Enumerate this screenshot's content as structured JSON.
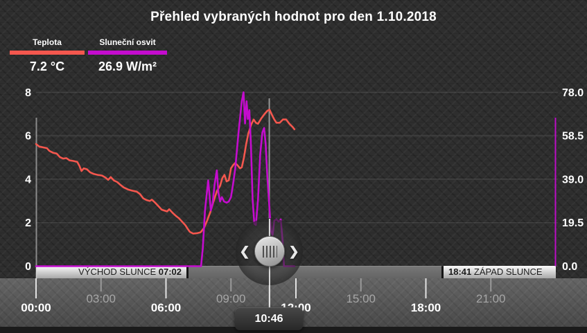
{
  "title": "Přehled vybraných hodnot pro den 1.10.2018",
  "legend": [
    {
      "label": "Teplota",
      "value": "7.2 °C",
      "color": "#f4574e"
    },
    {
      "label": "Sluneční osvit",
      "value": "26.9 W/m²",
      "color": "#c40cce"
    }
  ],
  "sun_band": {
    "sunrise_label": "VÝCHOD SLUNCE",
    "sunrise_time": "07:02",
    "sunset_time": "18:41",
    "sunset_label": "ZÁPAD SLUNCE"
  },
  "cursor": {
    "time": "10:46",
    "hour": 10.77
  },
  "slider": {
    "left_arrow": "❮",
    "right_arrow": "❯"
  },
  "colors": {
    "background": "#2e2e2e",
    "temperature_line": "#f4574e",
    "solar_line": "#c40cce",
    "grid": "rgba(255,255,255,0.14)",
    "major_tick_label": "#ffffff",
    "minor_tick_label": "#a6a6a6"
  },
  "chart_data": {
    "type": "line",
    "title": "Přehled vybraných hodnot pro den 1.10.2018",
    "x": {
      "unit": "time",
      "range_hours": [
        0,
        24
      ],
      "ticks": [
        {
          "hour": 0,
          "label": "00:00",
          "major": true
        },
        {
          "hour": 3,
          "label": "03:00",
          "major": false
        },
        {
          "hour": 6,
          "label": "06:00",
          "major": true
        },
        {
          "hour": 9,
          "label": "09:00",
          "major": false
        },
        {
          "hour": 12,
          "label": "12:00",
          "major": true
        },
        {
          "hour": 15,
          "label": "15:00",
          "major": false
        },
        {
          "hour": 18,
          "label": "18:00",
          "major": true
        },
        {
          "hour": 21,
          "label": "21:00",
          "major": false
        }
      ]
    },
    "y_left": {
      "name": "Teplota",
      "unit": "°C",
      "range": [
        0,
        8
      ],
      "ticks": [
        {
          "value": 0,
          "label": "0"
        },
        {
          "value": 2,
          "label": "2"
        },
        {
          "value": 4,
          "label": "4"
        },
        {
          "value": 6,
          "label": "6"
        },
        {
          "value": 8,
          "label": "8"
        }
      ]
    },
    "y_right": {
      "name": "Sluneční osvit",
      "unit": "W/m²",
      "range": [
        0,
        78
      ],
      "ticks": [
        {
          "value": 0,
          "label": "0.0"
        },
        {
          "value": 19.5,
          "label": "19.5"
        },
        {
          "value": 39,
          "label": "39.0"
        },
        {
          "value": 58.5,
          "label": "58.5"
        },
        {
          "value": 78,
          "label": "78.0"
        }
      ]
    },
    "grid": true,
    "selected_point": {
      "time": "10:46",
      "temperature_c": 7.2,
      "solar_wm2": 26.9
    },
    "sunrise": "07:02",
    "sunset": "18:41",
    "series": [
      {
        "name": "Teplota",
        "axis": "left",
        "color": "#f4574e",
        "points": [
          [
            0,
            5.62
          ],
          [
            0.15,
            5.5
          ],
          [
            0.3,
            5.47
          ],
          [
            0.5,
            5.43
          ],
          [
            0.62,
            5.3
          ],
          [
            0.78,
            5.22
          ],
          [
            0.95,
            5.18
          ],
          [
            1.1,
            5.02
          ],
          [
            1.25,
            4.95
          ],
          [
            1.4,
            4.97
          ],
          [
            1.55,
            4.87
          ],
          [
            1.72,
            4.84
          ],
          [
            1.9,
            4.8
          ],
          [
            2.0,
            4.62
          ],
          [
            2.1,
            4.38
          ],
          [
            2.2,
            4.5
          ],
          [
            2.35,
            4.46
          ],
          [
            2.5,
            4.32
          ],
          [
            2.65,
            4.25
          ],
          [
            2.85,
            4.2
          ],
          [
            3.05,
            4.17
          ],
          [
            3.2,
            4.08
          ],
          [
            3.33,
            3.97
          ],
          [
            3.45,
            4.1
          ],
          [
            3.6,
            3.94
          ],
          [
            3.75,
            3.87
          ],
          [
            3.9,
            3.74
          ],
          [
            4.05,
            3.62
          ],
          [
            4.25,
            3.53
          ],
          [
            4.45,
            3.47
          ],
          [
            4.65,
            3.43
          ],
          [
            4.8,
            3.32
          ],
          [
            4.95,
            3.12
          ],
          [
            5.1,
            3.04
          ],
          [
            5.25,
            3.0
          ],
          [
            5.35,
            3.06
          ],
          [
            5.5,
            2.92
          ],
          [
            5.65,
            2.76
          ],
          [
            5.8,
            2.6
          ],
          [
            5.95,
            2.55
          ],
          [
            6.05,
            2.52
          ],
          [
            6.15,
            2.62
          ],
          [
            6.3,
            2.46
          ],
          [
            6.45,
            2.32
          ],
          [
            6.6,
            2.2
          ],
          [
            6.75,
            2.04
          ],
          [
            6.9,
            1.88
          ],
          [
            7.0,
            1.72
          ],
          [
            7.1,
            1.58
          ],
          [
            7.25,
            1.5
          ],
          [
            7.45,
            1.52
          ],
          [
            7.6,
            1.56
          ],
          [
            7.75,
            1.75
          ],
          [
            7.9,
            2.1
          ],
          [
            8.05,
            2.5
          ],
          [
            8.2,
            3.0
          ],
          [
            8.35,
            3.45
          ],
          [
            8.5,
            3.7
          ],
          [
            8.6,
            4.05
          ],
          [
            8.7,
            4.2
          ],
          [
            8.8,
            3.9
          ],
          [
            8.9,
            3.95
          ],
          [
            9.0,
            4.5
          ],
          [
            9.1,
            4.65
          ],
          [
            9.2,
            4.75
          ],
          [
            9.32,
            4.62
          ],
          [
            9.42,
            4.5
          ],
          [
            9.5,
            4.55
          ],
          [
            9.6,
            5.0
          ],
          [
            9.7,
            5.6
          ],
          [
            9.8,
            6.1
          ],
          [
            9.95,
            6.55
          ],
          [
            10.05,
            6.75
          ],
          [
            10.15,
            6.6
          ],
          [
            10.25,
            6.55
          ],
          [
            10.4,
            6.8
          ],
          [
            10.55,
            7.0
          ],
          [
            10.68,
            7.15
          ],
          [
            10.78,
            7.2
          ],
          [
            10.9,
            6.95
          ],
          [
            11.0,
            6.75
          ],
          [
            11.1,
            6.6
          ],
          [
            11.25,
            6.6
          ],
          [
            11.4,
            6.75
          ],
          [
            11.55,
            6.75
          ],
          [
            11.7,
            6.55
          ],
          [
            11.85,
            6.4
          ],
          [
            11.93,
            6.3
          ]
        ]
      },
      {
        "name": "Sluneční osvit",
        "axis": "right",
        "color": "#c40cce",
        "points": [
          [
            0,
            0
          ],
          [
            7.62,
            0
          ],
          [
            7.7,
            8
          ],
          [
            7.8,
            25
          ],
          [
            7.95,
            38.5
          ],
          [
            8.0,
            33
          ],
          [
            8.07,
            25
          ],
          [
            8.15,
            28
          ],
          [
            8.25,
            37
          ],
          [
            8.35,
            43
          ],
          [
            8.42,
            33
          ],
          [
            8.5,
            29
          ],
          [
            8.58,
            31
          ],
          [
            8.68,
            29
          ],
          [
            8.8,
            28.5
          ],
          [
            8.9,
            29
          ],
          [
            9.0,
            31
          ],
          [
            9.1,
            37
          ],
          [
            9.2,
            44
          ],
          [
            9.35,
            60
          ],
          [
            9.5,
            74
          ],
          [
            9.58,
            78
          ],
          [
            9.65,
            64
          ],
          [
            9.72,
            74
          ],
          [
            9.78,
            66
          ],
          [
            9.85,
            70
          ],
          [
            9.92,
            55
          ],
          [
            10.0,
            30
          ],
          [
            10.08,
            19
          ],
          [
            10.15,
            18.5
          ],
          [
            10.25,
            30
          ],
          [
            10.35,
            50
          ],
          [
            10.45,
            60
          ],
          [
            10.53,
            62
          ],
          [
            10.6,
            55
          ],
          [
            10.68,
            40
          ],
          [
            10.77,
            26.9
          ],
          [
            10.84,
            16
          ],
          [
            10.92,
            14
          ],
          [
            11.0,
            20.5
          ],
          [
            11.1,
            21
          ],
          [
            11.2,
            20
          ],
          [
            11.3,
            21
          ],
          [
            11.38,
            12
          ],
          [
            11.45,
            0
          ],
          [
            11.93,
            0
          ]
        ]
      }
    ]
  }
}
